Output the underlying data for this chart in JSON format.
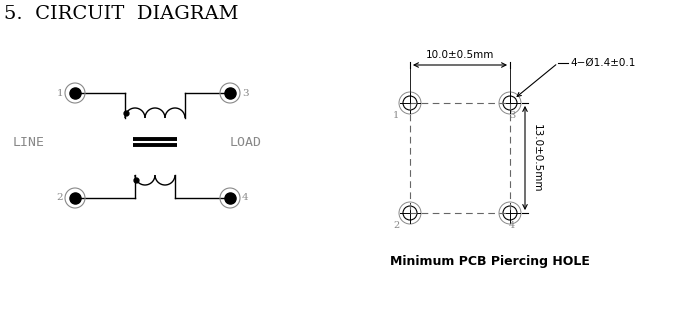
{
  "title": "5.  CIRCUIT  DIAGRAM",
  "bg_color": "#ffffff",
  "line_color": "#000000",
  "gray_color": "#888888",
  "title_fontsize": 14,
  "label_fontsize": 8.5,
  "dim_fontsize": 7.5,
  "pcb_text": "Minimum PCB Piercing HOLE",
  "dim_horiz": "10.0±0.5mm",
  "dim_vert": "13.0±0.5mm",
  "dim_hole": "4−Ø1.4±0.1"
}
